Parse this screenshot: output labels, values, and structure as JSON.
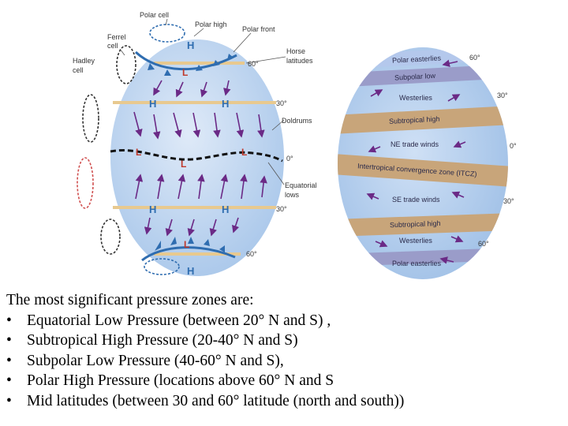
{
  "left_globe": {
    "labels": {
      "polar_cell": "Polar cell",
      "polar_high": "Polar high",
      "polar_front": "Polar front",
      "ferrel_cell_1": "Ferrel",
      "ferrel_cell_2": "cell",
      "hadley_cell_1": "Hadley",
      "hadley_cell_2": "cell",
      "horse_latitudes_1": "Horse",
      "horse_latitudes_2": "latitudes",
      "doldrums": "Doldrums",
      "equatorial_lows_1": "Equatorial",
      "equatorial_lows_2": "lows"
    },
    "latitudes": {
      "north_60": "60°",
      "north_30": "30°",
      "equator": "0°",
      "south_30": "30°",
      "south_60": "60°"
    },
    "pressure_marks": {
      "high": "H",
      "low": "L"
    }
  },
  "right_globe": {
    "bands": {
      "polar_easterlies_north": "Polar easterlies",
      "subpolar_low_north": "Subpolar low",
      "westerlies_north": "Westerlies",
      "subtropical_high_north": "Subtropical high",
      "ne_trade_winds": "NE trade winds",
      "itcz": "Intertropical convergence zone (ITCZ)",
      "se_trade_winds": "SE trade winds",
      "subtropical_high_south": "Subtropical high",
      "westerlies_south": "Westerlies",
      "polar_easterlies_south": "Polar easterlies"
    },
    "latitudes": {
      "north_60": "60°",
      "north_30": "30°",
      "equator": "0°",
      "south_30": "30°",
      "south_60": "60°"
    }
  },
  "text": {
    "intro": "The most significant pressure zones are:",
    "bullet_char": "•",
    "items": [
      "Equatorial Low Pressure (between 20° N and S) ,",
      "Subtropical High Pressure (20-40° N and S)",
      "Subpolar Low Pressure (40-60° N and S),",
      "Polar High Pressure (locations above 60° N and S",
      "Mid latitudes (between 30 and 60° latitude (north and south))"
    ]
  },
  "colors": {
    "globe_blue": "#b9d3ee",
    "band_tan": "#c8a57a",
    "band_purple": "#9a9cc9",
    "high_blue": "#2f6db0",
    "low_red": "#c0392b",
    "arrow_purple": "#6b2a86"
  }
}
